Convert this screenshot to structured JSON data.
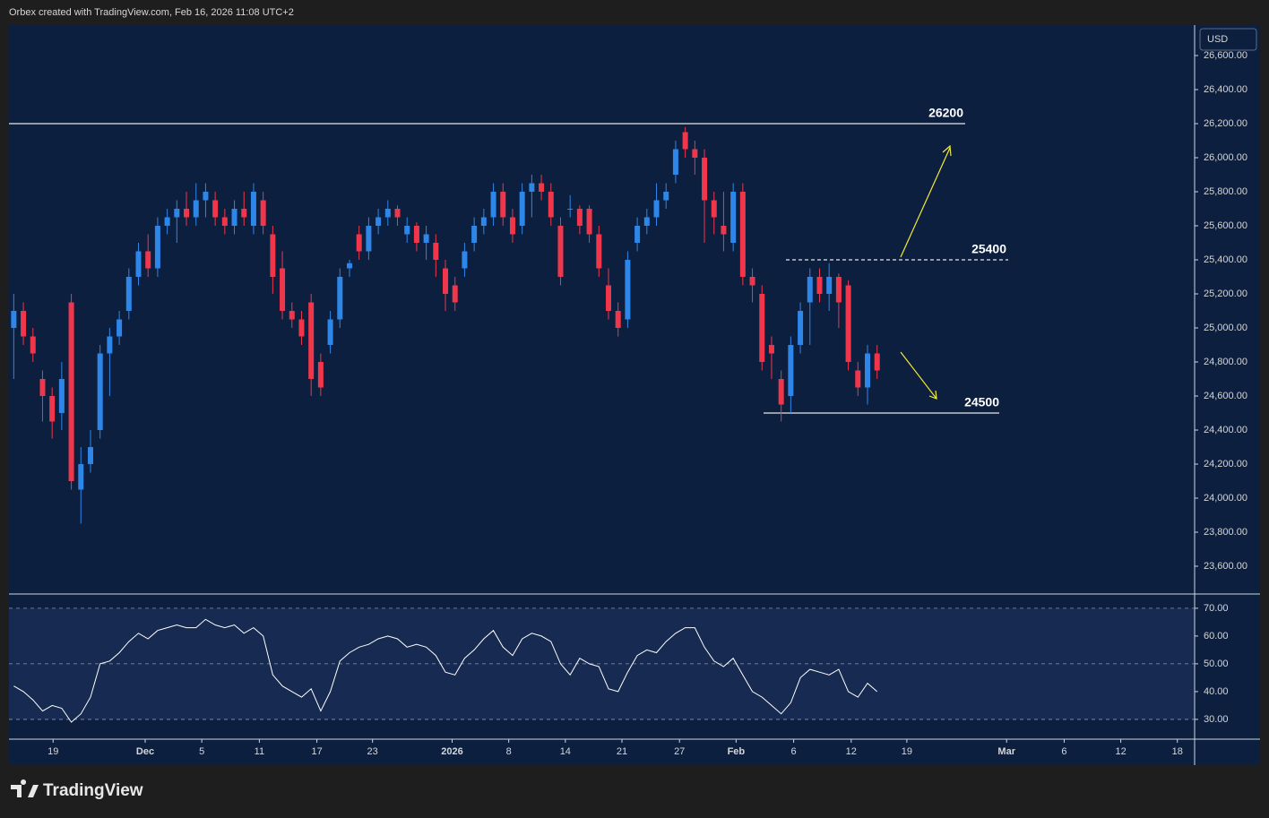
{
  "header": {
    "text": "Orbex created with TradingView.com, Feb 16, 2026 11:08 UTC+2",
    "currency": "USD",
    "brand": "TradingView"
  },
  "chart_data": [
    {
      "type": "candlestick",
      "up_color": "#2e86e8",
      "down_color": "#f0364b",
      "ylim": [
        23442,
        26779
      ],
      "xlim": [
        0,
        123.6
      ],
      "yticks": [
        {
          "value": 23600,
          "label": "23,600.00"
        },
        {
          "value": 23800,
          "label": "23,800.00"
        },
        {
          "value": 24000,
          "label": "24,000.00"
        },
        {
          "value": 24200,
          "label": "24,200.00"
        },
        {
          "value": 24400,
          "label": "24,400.00"
        },
        {
          "value": 24600,
          "label": "24,600.00"
        },
        {
          "value": 24800,
          "label": "24,800.00"
        },
        {
          "value": 25000,
          "label": "25,000.00"
        },
        {
          "value": 25200,
          "label": "25,200.00"
        },
        {
          "value": 25400,
          "label": "25,400.00"
        },
        {
          "value": 25600,
          "label": "25,600.00"
        },
        {
          "value": 25800,
          "label": "25,800.00"
        },
        {
          "value": 26000,
          "label": "26,000.00"
        },
        {
          "value": 26200,
          "label": "26,200.00"
        },
        {
          "value": 26400,
          "label": "26,400.00"
        },
        {
          "value": 26600,
          "label": "26,600.00"
        }
      ],
      "xticks": [
        {
          "value": 4.6,
          "label": "19"
        },
        {
          "value": 14.2,
          "label": "Dec"
        },
        {
          "value": 20.1,
          "label": "5"
        },
        {
          "value": 26.1,
          "label": "11"
        },
        {
          "value": 32.1,
          "label": "17"
        },
        {
          "value": 37.9,
          "label": "23"
        },
        {
          "value": 46.2,
          "label": "2026"
        },
        {
          "value": 52.1,
          "label": "8"
        },
        {
          "value": 58.0,
          "label": "14"
        },
        {
          "value": 63.9,
          "label": "21"
        },
        {
          "value": 69.9,
          "label": "27"
        },
        {
          "value": 75.8,
          "label": "Feb"
        },
        {
          "value": 81.8,
          "label": "6"
        },
        {
          "value": 87.8,
          "label": "12"
        },
        {
          "value": 93.6,
          "label": "19"
        },
        {
          "value": 104.0,
          "label": "Mar"
        },
        {
          "value": 110.0,
          "label": "6"
        },
        {
          "value": 115.9,
          "label": "12"
        },
        {
          "value": 121.8,
          "label": "18"
        }
      ],
      "levels": [
        26200,
        25400,
        24500
      ],
      "open": [
        25000,
        25100,
        24950,
        24700,
        24600,
        24500,
        25150,
        24050,
        24200,
        24400,
        24850,
        24950,
        25100,
        25300,
        25450,
        25350,
        25600,
        25650,
        25700,
        25650,
        25750,
        25750,
        25650,
        25600,
        25700,
        25600,
        25750,
        25550,
        25350,
        25100,
        25050,
        25150,
        24800,
        24900,
        25050,
        25350,
        25550,
        25450,
        25600,
        25650,
        25700,
        25550,
        25600,
        25500,
        25500,
        25350,
        25250,
        25350,
        25500,
        25600,
        25650,
        25800,
        25650,
        25600,
        25800,
        25850,
        25800,
        25600,
        25700,
        25700,
        25700,
        25550,
        25250,
        25100,
        25050,
        25500,
        25600,
        25650,
        25750,
        25900,
        26150,
        26050,
        26000,
        25750,
        25600,
        25500,
        25800,
        25300,
        25200,
        24900,
        24700,
        24600,
        24900,
        25150,
        25300,
        25200,
        25300,
        25250,
        24750,
        24650,
        24850
      ],
      "high": [
        25200,
        25150,
        25000,
        24750,
        24650,
        24800,
        25200,
        24300,
        24400,
        24900,
        25000,
        25100,
        25350,
        25500,
        25550,
        25650,
        25700,
        25750,
        25800,
        25850,
        25850,
        25800,
        25700,
        25750,
        25800,
        25850,
        25800,
        25600,
        25450,
        25150,
        25100,
        25200,
        24850,
        25100,
        25350,
        25400,
        25600,
        25650,
        25700,
        25750,
        25720,
        25650,
        25620,
        25600,
        25550,
        25400,
        25300,
        25500,
        25650,
        25700,
        25850,
        25850,
        25700,
        25850,
        25900,
        25900,
        25850,
        25650,
        25780,
        25720,
        25720,
        25600,
        25350,
        25150,
        25450,
        25650,
        25700,
        25850,
        25850,
        26100,
        26180,
        26100,
        26050,
        25800,
        25800,
        25850,
        25850,
        25350,
        25250,
        24950,
        24750,
        24950,
        25150,
        25350,
        25350,
        25380,
        25320,
        25280,
        24800,
        24900,
        24900
      ],
      "low": [
        24700,
        24900,
        24800,
        24450,
        24350,
        24400,
        24050,
        23850,
        24150,
        24350,
        24600,
        24900,
        25050,
        25250,
        25300,
        25300,
        25550,
        25500,
        25600,
        25600,
        25650,
        25600,
        25550,
        25550,
        25600,
        25550,
        25550,
        25200,
        25050,
        25000,
        24900,
        24600,
        24600,
        24850,
        25000,
        25300,
        25400,
        25400,
        25550,
        25600,
        25600,
        25500,
        25450,
        25400,
        25300,
        25100,
        25100,
        25300,
        25450,
        25550,
        25600,
        25600,
        25500,
        25550,
        25650,
        25750,
        25600,
        25250,
        25650,
        25550,
        25500,
        25300,
        25050,
        24950,
        25000,
        25450,
        25550,
        25600,
        25700,
        25850,
        26000,
        25900,
        25500,
        25550,
        25450,
        25450,
        25250,
        25150,
        24750,
        24700,
        24450,
        24500,
        24850,
        24900,
        25150,
        25100,
        25000,
        24750,
        24600,
        24550,
        24700
      ],
      "close": [
        25100,
        24950,
        24850,
        24600,
        24450,
        24700,
        24100,
        24200,
        24300,
        24850,
        24950,
        25050,
        25300,
        25450,
        25350,
        25600,
        25650,
        25700,
        25650,
        25750,
        25800,
        25650,
        25600,
        25700,
        25650,
        25800,
        25600,
        25300,
        25100,
        25050,
        24950,
        24700,
        24650,
        25050,
        25300,
        25380,
        25450,
        25600,
        25650,
        25700,
        25650,
        25600,
        25500,
        25550,
        25400,
        25200,
        25150,
        25450,
        25600,
        25650,
        25800,
        25650,
        25550,
        25800,
        25850,
        25800,
        25650,
        25300,
        25700,
        25600,
        25550,
        25350,
        25100,
        25000,
        25400,
        25600,
        25650,
        25750,
        25800,
        26050,
        26050,
        26000,
        25750,
        25650,
        25550,
        25800,
        25300,
        25250,
        24800,
        24850,
        24550,
        24900,
        25100,
        25300,
        25200,
        25300,
        25150,
        24800,
        24650,
        24850,
        24750
      ]
    },
    {
      "type": "line",
      "color": "#ffffff",
      "ylim": [
        23.2,
        74.8
      ],
      "xlim": [
        0,
        123.6
      ],
      "yticks": [
        {
          "value": 30,
          "label": "30.00"
        },
        {
          "value": 40,
          "label": "40.00"
        },
        {
          "value": 50,
          "label": "50.00"
        },
        {
          "value": 60,
          "label": "60.00"
        },
        {
          "value": 70,
          "label": "70.00"
        }
      ],
      "band": [
        30,
        70
      ],
      "dashed": [
        30,
        50,
        70
      ],
      "values": [
        42,
        40,
        37,
        33,
        35,
        34,
        29,
        32,
        38,
        50,
        51,
        54,
        58,
        61,
        59,
        62,
        63,
        64,
        63,
        63,
        66,
        64,
        63,
        64,
        61,
        63,
        60,
        46,
        42,
        40,
        38,
        41,
        33,
        40,
        51,
        54,
        56,
        57,
        59,
        60,
        59,
        56,
        57,
        56,
        53,
        47,
        46,
        52,
        55,
        59,
        62,
        56,
        53,
        59,
        61,
        60,
        58,
        50,
        46,
        52,
        50,
        49,
        41,
        40,
        47,
        53,
        55,
        54,
        58,
        61,
        63,
        63,
        56,
        51,
        49,
        52,
        46,
        40,
        38,
        35,
        32,
        36,
        45,
        48,
        47,
        46,
        48,
        40,
        38,
        43,
        40
      ]
    }
  ]
}
